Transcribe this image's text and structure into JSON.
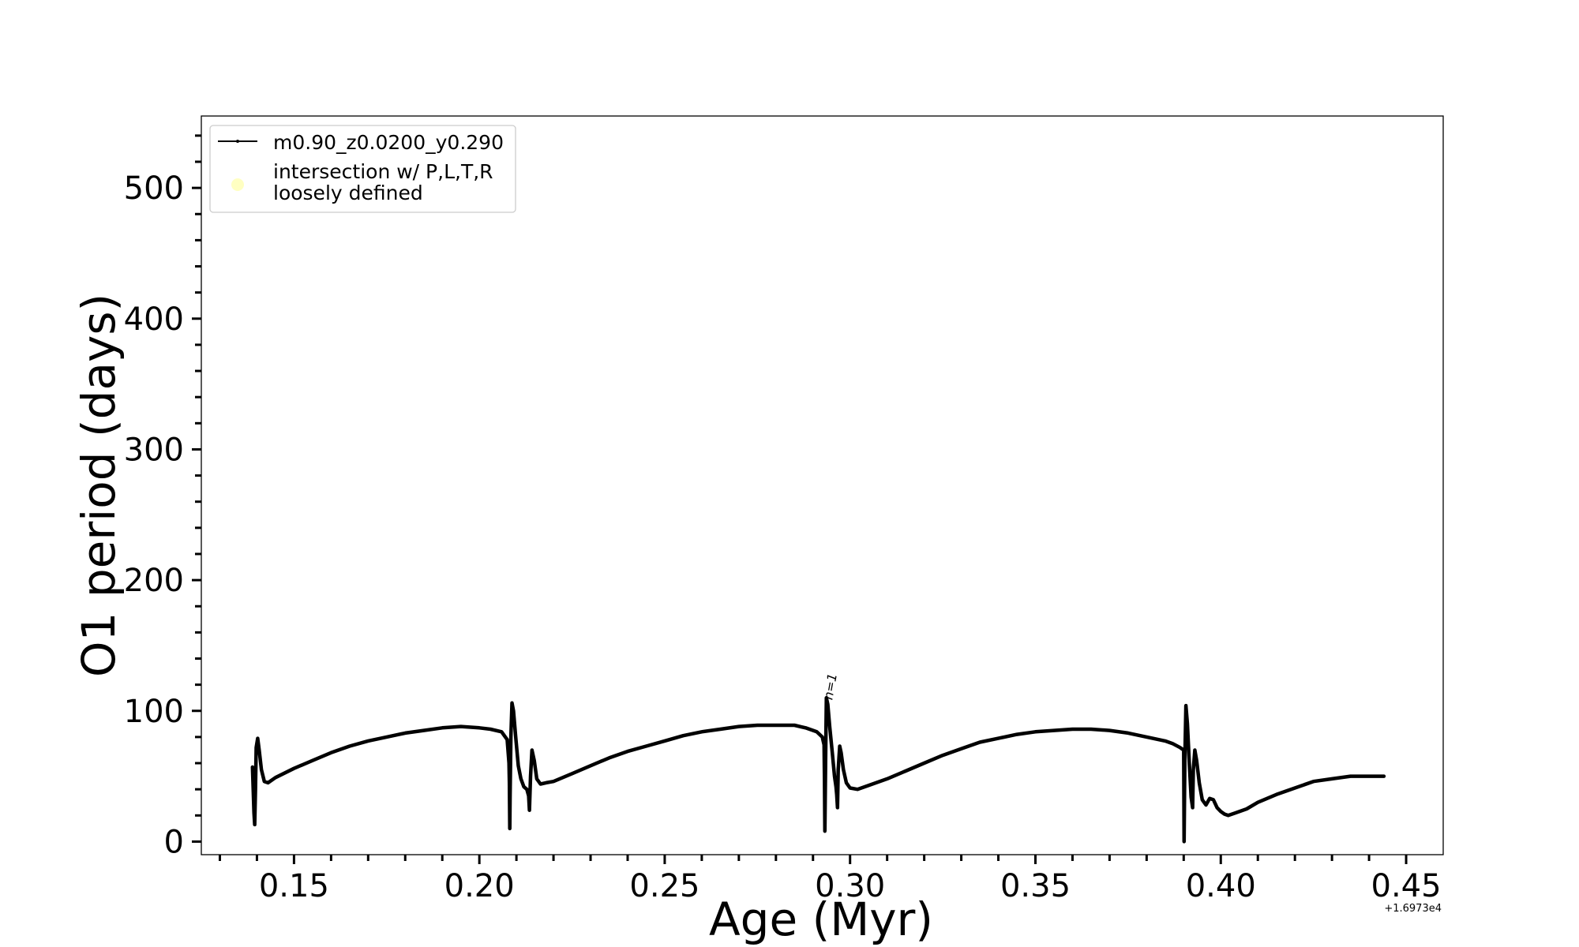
{
  "chart_data": {
    "type": "line",
    "xlabel": "Age (Myr)",
    "ylabel": "O1 period (days)",
    "x_offset_label": "+1.6973e4",
    "xlim": [
      0.125,
      0.46
    ],
    "ylim": [
      -10,
      555
    ],
    "x_ticks": [
      0.15,
      0.2,
      0.25,
      0.3,
      0.35,
      0.4,
      0.45
    ],
    "x_tick_labels": [
      "0.15",
      "0.20",
      "0.25",
      "0.30",
      "0.35",
      "0.40",
      "0.45"
    ],
    "y_ticks": [
      0,
      100,
      200,
      300,
      400,
      500
    ],
    "y_tick_labels": [
      "0",
      "100",
      "200",
      "300",
      "400",
      "500"
    ],
    "grid": false,
    "legend_position": "upper-left",
    "legend": [
      {
        "label": "m0.90_z0.0200_y0.290",
        "marker": "line",
        "color": "#000000"
      },
      {
        "label_lines": [
          "intersection w/ P,L,T,R",
          "loosely defined"
        ],
        "marker": "circle",
        "color": "#ffff99"
      }
    ],
    "annotations": [
      {
        "text": "n=1",
        "x": 0.2952,
        "y": 108,
        "rotation": -80
      }
    ],
    "series": [
      {
        "name": "m0.90_z0.0200_y0.290",
        "color": "#000000",
        "x": [
          0.1388,
          0.1392,
          0.1394,
          0.1396,
          0.1398,
          0.1402,
          0.1406,
          0.1412,
          0.142,
          0.143,
          0.145,
          0.15,
          0.155,
          0.16,
          0.165,
          0.17,
          0.175,
          0.18,
          0.185,
          0.19,
          0.195,
          0.2,
          0.203,
          0.206,
          0.2075,
          0.208,
          0.2081,
          0.2082,
          0.2083,
          0.2085,
          0.2088,
          0.2092,
          0.2098,
          0.2105,
          0.2112,
          0.212,
          0.2128,
          0.2133,
          0.2135,
          0.2138,
          0.2142,
          0.2148,
          0.2155,
          0.2165,
          0.218,
          0.22,
          0.225,
          0.23,
          0.235,
          0.24,
          0.245,
          0.25,
          0.255,
          0.26,
          0.265,
          0.27,
          0.275,
          0.28,
          0.285,
          0.288,
          0.291,
          0.2925,
          0.293,
          0.2931,
          0.2932,
          0.2934,
          0.2936,
          0.294,
          0.2945,
          0.2952,
          0.2958,
          0.2962,
          0.2964,
          0.2966,
          0.2968,
          0.2972,
          0.2976,
          0.2982,
          0.299,
          0.3,
          0.302,
          0.305,
          0.31,
          0.315,
          0.32,
          0.325,
          0.33,
          0.335,
          0.34,
          0.345,
          0.35,
          0.355,
          0.36,
          0.365,
          0.37,
          0.375,
          0.38,
          0.385,
          0.387,
          0.389,
          0.39,
          0.3901,
          0.3903,
          0.3906,
          0.391,
          0.3915,
          0.392,
          0.3924,
          0.3926,
          0.393,
          0.3935,
          0.3942,
          0.395,
          0.396,
          0.397,
          0.398,
          0.399,
          0.4,
          0.401,
          0.402,
          0.404,
          0.407,
          0.41,
          0.415,
          0.42,
          0.425,
          0.43,
          0.435,
          0.44,
          0.444
        ],
        "y": [
          57,
          22,
          13,
          40,
          72,
          79,
          70,
          55,
          46,
          45,
          49,
          56,
          62,
          68,
          73,
          77,
          80,
          83,
          85,
          87,
          88,
          87,
          86,
          84,
          78,
          60,
          45,
          10,
          35,
          80,
          106,
          100,
          80,
          58,
          48,
          42,
          40,
          35,
          24,
          50,
          70,
          62,
          48,
          44,
          45,
          46,
          52,
          58,
          64,
          69,
          73,
          77,
          81,
          84,
          86,
          88,
          89,
          89,
          89,
          87,
          84,
          80,
          74,
          48,
          8,
          60,
          110,
          105,
          88,
          68,
          50,
          42,
          36,
          26,
          55,
          73,
          68,
          55,
          45,
          41,
          40,
          43,
          48,
          54,
          60,
          66,
          71,
          76,
          79,
          82,
          84,
          85,
          86,
          86,
          85,
          83,
          80,
          77,
          75,
          72,
          70,
          0,
          60,
          104,
          90,
          60,
          34,
          26,
          55,
          70,
          62,
          45,
          32,
          28,
          33,
          32,
          26,
          23,
          21,
          20,
          22,
          25,
          30,
          36,
          41,
          46,
          48,
          50,
          50,
          50
        ]
      }
    ]
  }
}
